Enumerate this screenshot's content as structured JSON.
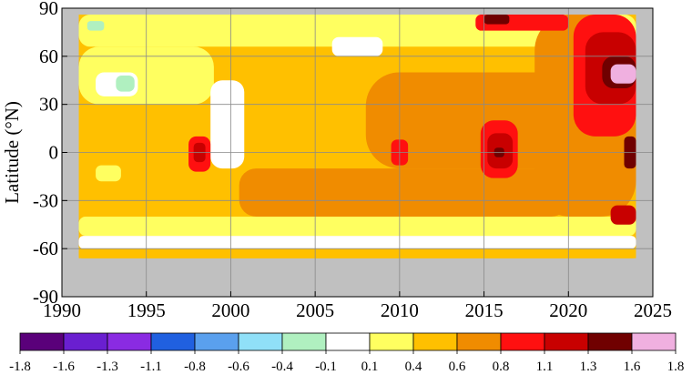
{
  "chart_data": {
    "type": "heatmap",
    "title": "",
    "xlabel": "",
    "ylabel": "Latitude (°N)",
    "x_range": [
      1990,
      2025
    ],
    "y_range": [
      -90,
      90
    ],
    "x_ticks": [
      1990,
      1995,
      2000,
      2005,
      2010,
      2015,
      2020,
      2025
    ],
    "y_ticks": [
      90,
      60,
      30,
      0,
      -30,
      -60,
      -90
    ],
    "y_tick_labels": [
      "90",
      "60",
      "30",
      "0",
      "-30",
      "-60",
      "-90"
    ],
    "grid": true,
    "data_extent": {
      "x": [
        1991.0,
        2024.0
      ],
      "lat": [
        -66,
        86
      ],
      "no_data_fill": "#c0c0c0"
    },
    "colorbar": {
      "orientation": "horizontal",
      "position": "bottom",
      "bounds": [
        "-1.8",
        "-1.6",
        "-1.3",
        "-1.1",
        "-0.8",
        "-0.6",
        "-0.4",
        "-0.1",
        "0.1",
        "0.4",
        "0.6",
        "0.8",
        "1.1",
        "1.3",
        "1.6",
        "1.8"
      ],
      "colors": [
        "#5a007a",
        "#6a1fd0",
        "#8a2be2",
        "#2060e0",
        "#5aa0ee",
        "#90e0f8",
        "#b0f0c0",
        "#ffffff",
        "#ffff60",
        "#ffc000",
        "#f08c00",
        "#ff1010",
        "#c80000",
        "#700000",
        "#f0b0e0"
      ]
    },
    "background_level": 0.4,
    "features": [
      {
        "x": [
          1991.0,
          2024.0
        ],
        "lat": [
          -52,
          -40
        ],
        "value": 0.1
      },
      {
        "x": [
          1991.0,
          2024.0
        ],
        "lat": [
          -60,
          -52
        ],
        "value": -0.1
      },
      {
        "x": [
          1991.0,
          2024.0
        ],
        "lat": [
          -66,
          -60
        ],
        "value": 0.4
      },
      {
        "x": [
          1991.0,
          2024.0
        ],
        "lat": [
          66,
          86
        ],
        "value": 0.1
      },
      {
        "x": [
          1991.0,
          1999.0
        ],
        "lat": [
          30,
          66
        ],
        "value": 0.1
      },
      {
        "x": [
          1992.0,
          1994.5
        ],
        "lat": [
          35,
          50
        ],
        "value": -0.1
      },
      {
        "x": [
          1993.2,
          1994.3
        ],
        "lat": [
          38,
          48
        ],
        "value": -0.4
      },
      {
        "x": [
          1991.5,
          1992.5
        ],
        "lat": [
          76,
          82
        ],
        "value": -0.4
      },
      {
        "x": [
          1998.8,
          2000.8
        ],
        "lat": [
          -10,
          45
        ],
        "value": -0.1
      },
      {
        "x": [
          2006.0,
          2009.0
        ],
        "lat": [
          60,
          72
        ],
        "value": -0.1
      },
      {
        "x": [
          1992.0,
          1993.5
        ],
        "lat": [
          -18,
          -8
        ],
        "value": 0.1
      },
      {
        "x": [
          2000.5,
          2020.0
        ],
        "lat": [
          -40,
          -10
        ],
        "value": 0.6
      },
      {
        "x": [
          2008.0,
          2020.0
        ],
        "lat": [
          -10,
          50
        ],
        "value": 0.6
      },
      {
        "x": [
          1997.5,
          1998.8
        ],
        "lat": [
          -12,
          10
        ],
        "value": 0.8
      },
      {
        "x": [
          1997.8,
          1998.5
        ],
        "lat": [
          -6,
          6
        ],
        "value": 1.1
      },
      {
        "x": [
          2009.5,
          2010.5
        ],
        "lat": [
          -8,
          8
        ],
        "value": 0.8
      },
      {
        "x": [
          2014.8,
          2017.0
        ],
        "lat": [
          -16,
          20
        ],
        "value": 0.8
      },
      {
        "x": [
          2015.2,
          2016.7
        ],
        "lat": [
          -10,
          12
        ],
        "value": 1.1
      },
      {
        "x": [
          2015.6,
          2016.2
        ],
        "lat": [
          -3,
          3
        ],
        "value": 1.3
      },
      {
        "x": [
          2018.0,
          2024.0
        ],
        "lat": [
          -40,
          86
        ],
        "value": 0.6
      },
      {
        "x": [
          2020.3,
          2024.0
        ],
        "lat": [
          10,
          86
        ],
        "value": 0.8
      },
      {
        "x": [
          2021.0,
          2024.0
        ],
        "lat": [
          30,
          75
        ],
        "value": 1.1
      },
      {
        "x": [
          2022.0,
          2024.0
        ],
        "lat": [
          40,
          60
        ],
        "value": 1.3
      },
      {
        "x": [
          2022.5,
          2024.0
        ],
        "lat": [
          43,
          55
        ],
        "value": 1.6
      },
      {
        "x": [
          2023.3,
          2024.0
        ],
        "lat": [
          -10,
          10
        ],
        "value": 1.3
      },
      {
        "x": [
          2022.5,
          2024.0
        ],
        "lat": [
          -45,
          -33
        ],
        "value": 1.1
      },
      {
        "x": [
          2014.5,
          2020.0
        ],
        "lat": [
          76,
          86
        ],
        "value": 0.8
      },
      {
        "x": [
          2015.0,
          2016.5
        ],
        "lat": [
          80,
          86
        ],
        "value": 1.3
      }
    ]
  }
}
